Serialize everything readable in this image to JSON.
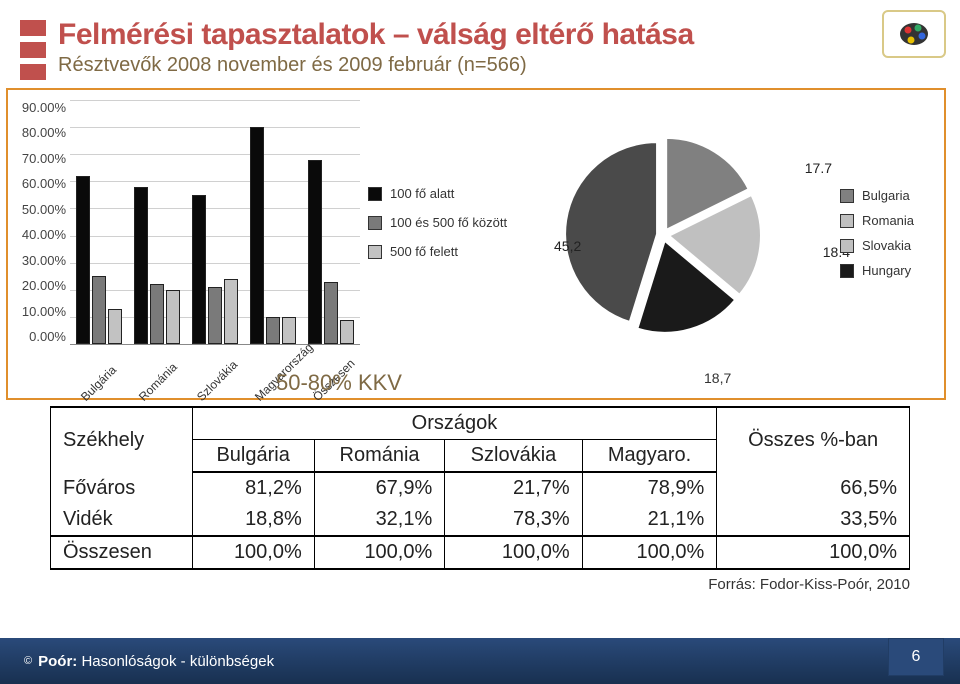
{
  "title": "Felmérési tapasztalatok – válság eltérő hatása",
  "subtitle": "Résztvevők 2008 november és 2009 február (n=566)",
  "bar_chart": {
    "type": "bar",
    "ylim": [
      0,
      90
    ],
    "ytick_step": 10,
    "ytick_labels": [
      "90.00%",
      "80.00%",
      "70.00%",
      "60.00%",
      "50.00%",
      "40.00%",
      "30.00%",
      "20.00%",
      "10.00%",
      "0.00%"
    ],
    "categories": [
      "Bulgária",
      "Románia",
      "Szlovákia",
      "Magyarország",
      "Összesen"
    ],
    "series": [
      {
        "name": "100 fő alatt",
        "color": "#0a0a0a",
        "values": [
          62,
          58,
          55,
          80,
          68
        ]
      },
      {
        "name": "100 és 500 fő között",
        "color": "#7a7a7a",
        "values": [
          25,
          22,
          21,
          10,
          23
        ]
      },
      {
        "name": "500 fő felett",
        "color": "#c2c2c2",
        "values": [
          13,
          20,
          24,
          10,
          9
        ]
      }
    ],
    "grid_color": "#d0d0d0",
    "label_fontsize": 13
  },
  "kkv_label": "50-80% KKV",
  "kkv_num": "18,7",
  "pie_chart": {
    "type": "pie",
    "legend": [
      "Bulgaria",
      "Romania",
      "Slovakia",
      "Hungary"
    ],
    "slices": [
      {
        "label": "17.7",
        "value": 17.7,
        "color": "#808080"
      },
      {
        "label": "18.4",
        "value": 18.4,
        "color": "#c0c0c0"
      },
      {
        "label": "18,7",
        "value": 18.7,
        "color": "#1a1a1a"
      },
      {
        "label": "45,2",
        "value": 45.2,
        "color": "#4a4a4a"
      }
    ],
    "legend_colors": [
      "#808080",
      "#c0c0c0",
      "#c0c0c0",
      "#1a1a1a"
    ],
    "explode": 0.04
  },
  "table": {
    "row_header": "Székhely",
    "group_header": "Országok",
    "total_header": "Összes %-ban",
    "columns": [
      "Bulgária",
      "Románia",
      "Szlovákia",
      "Magyaro."
    ],
    "rows": [
      {
        "label": "Főváros",
        "cells": [
          "81,2%",
          "67,9%",
          "21,7%",
          "78,9%"
        ],
        "total": "66,5%"
      },
      {
        "label": "Vidék",
        "cells": [
          "18,8%",
          "32,1%",
          "78,3%",
          "21,1%"
        ],
        "total": "33,5%"
      },
      {
        "label": "Összesen",
        "cells": [
          "100,0%",
          "100,0%",
          "100,0%",
          "100,0%"
        ],
        "total": "100,0%"
      }
    ]
  },
  "source": "Forrás: Fodor-Kiss-Poór, 2010",
  "footer": {
    "copyright": "©",
    "text_bold": "Poór:",
    "text": " Hasonlóságok - különbségek",
    "page": "6"
  }
}
